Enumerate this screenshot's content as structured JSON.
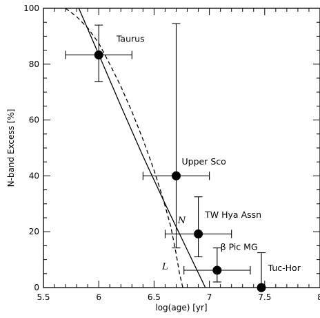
{
  "chart_data": {
    "type": "scatter",
    "xlabel": "log(age) [yr]",
    "ylabel": "N-band Excess [%]",
    "xlim": [
      5.5,
      8.0
    ],
    "ylim": [
      0,
      100
    ],
    "xticks": [
      5.5,
      6.0,
      6.5,
      7.0,
      7.5,
      8.0
    ],
    "xtick_labels": [
      "5.5",
      "6",
      "6.5",
      "7",
      "7.5",
      "8"
    ],
    "yticks": [
      0,
      20,
      40,
      60,
      80,
      100
    ],
    "ytick_labels": [
      "0",
      "20",
      "40",
      "60",
      "80",
      "100"
    ],
    "points": [
      {
        "label": "Taurus",
        "x": 6.0,
        "y": 83.3,
        "xerr": [
          5.7,
          6.3
        ],
        "yerr": [
          73.8,
          94.0
        ]
      },
      {
        "label": "Upper Sco",
        "x": 6.7,
        "y": 40.0,
        "xerr": [
          6.4,
          7.0
        ],
        "yerr": [
          14.2,
          94.5
        ]
      },
      {
        "label": "TW Hya Assn",
        "x": 6.9,
        "y": 19.2,
        "xerr": [
          6.6,
          7.2
        ],
        "yerr": [
          11.0,
          32.5
        ]
      },
      {
        "label": "β Pic MG",
        "x": 7.07,
        "y": 6.2,
        "xerr": [
          6.77,
          7.37
        ],
        "yerr": [
          2.0,
          14.2
        ]
      },
      {
        "label": "Tuc-Hor",
        "x": 7.47,
        "y": 0.0,
        "xerr": null,
        "yerr": [
          0.0,
          12.5
        ]
      }
    ],
    "lines": [
      {
        "label": "N",
        "style": "solid",
        "points": [
          [
            5.82,
            100
          ],
          [
            6.0,
            83.5
          ],
          [
            6.2,
            65
          ],
          [
            6.4,
            47
          ],
          [
            6.6,
            30
          ],
          [
            6.8,
            13.5
          ],
          [
            7.0,
            -3
          ]
        ]
      },
      {
        "label": "L",
        "style": "dashed",
        "points": [
          [
            5.7,
            100
          ],
          [
            5.8,
            97
          ],
          [
            5.9,
            93
          ],
          [
            6.0,
            87.5
          ],
          [
            6.1,
            80
          ],
          [
            6.2,
            72
          ],
          [
            6.3,
            63
          ],
          [
            6.4,
            53
          ],
          [
            6.5,
            42
          ],
          [
            6.58,
            32
          ],
          [
            6.65,
            22
          ],
          [
            6.7,
            12
          ],
          [
            6.73,
            5
          ],
          [
            6.76,
            0
          ]
        ]
      }
    ],
    "grid": false,
    "legend": "none"
  }
}
